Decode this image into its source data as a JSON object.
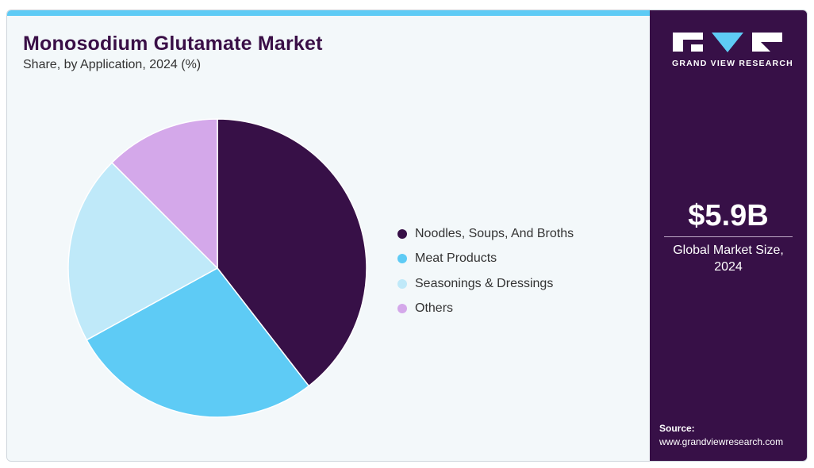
{
  "title": "Monosodium Glutamate Market",
  "subtitle": "Share, by Application, 2024 (%)",
  "brand": {
    "logo_text": "GRAND VIEW RESEARCH"
  },
  "market": {
    "value": "$5.9B",
    "label": "Global Market Size, 2024"
  },
  "source": {
    "label": "Source:",
    "url": "www.grandviewresearch.com"
  },
  "colors": {
    "accent_bar": "#5ecbf5",
    "sidebar": "#371047",
    "title": "#3a0f47"
  },
  "chart_data": {
    "type": "pie",
    "title": "Monosodium Glutamate Market",
    "subtitle": "Share, by Application, 2024 (%)",
    "legend_position": "right",
    "start_angle": "top, clockwise",
    "slices": [
      {
        "label": "Noodles, Soups, And Broths",
        "value": 39.5,
        "color": "#371047"
      },
      {
        "label": "Meat Products",
        "value": 27.5,
        "color": "#5ecbf5"
      },
      {
        "label": "Seasonings & Dressings",
        "value": 20.5,
        "color": "#bfe9f9"
      },
      {
        "label": "Others",
        "value": 12.5,
        "color": "#d4a8ea"
      }
    ]
  }
}
